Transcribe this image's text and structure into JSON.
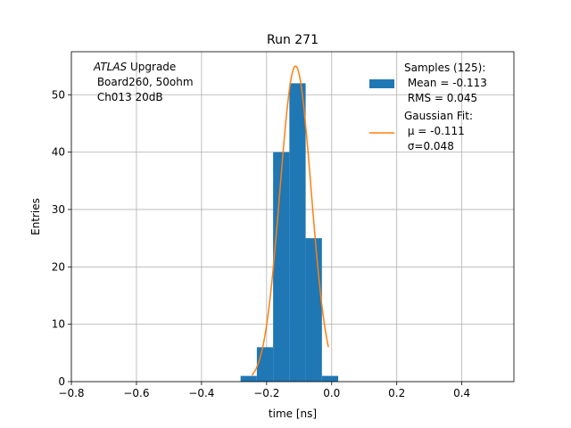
{
  "chart_data": {
    "type": "bar",
    "title": "Run 271",
    "xlabel": "time [ns]",
    "ylabel": "Entries",
    "xlim": [
      -0.8,
      0.56
    ],
    "ylim": [
      0,
      57.5
    ],
    "xticks": [
      -0.8,
      -0.6,
      -0.4,
      -0.2,
      0.0,
      0.2,
      0.4
    ],
    "xtick_labels": [
      "−0.8",
      "−0.6",
      "−0.4",
      "−0.2",
      "0.0",
      "0.2",
      "0.4"
    ],
    "yticks": [
      0,
      10,
      20,
      30,
      40,
      50
    ],
    "ytick_labels": [
      "0",
      "10",
      "20",
      "30",
      "40",
      "50"
    ],
    "grid": true,
    "legend_position": "top-right",
    "annotation": {
      "italic": "ATLAS",
      "line1_rest": " Upgrade",
      "line2": " Board260, 50ohm",
      "line3": " Ch013 20dB"
    },
    "histogram": {
      "name_lines": [
        "Samples (125):",
        " Mean = -0.113",
        " RMS = 0.045"
      ],
      "color": "#1f77b4",
      "bin_edges": [
        -0.28,
        -0.23,
        -0.18,
        -0.13,
        -0.08,
        -0.03,
        0.02
      ],
      "counts": [
        1,
        6,
        40,
        52,
        25,
        1
      ]
    },
    "fit": {
      "name_lines": [
        "Gaussian Fit:",
        " μ = -0.111",
        " σ=0.048"
      ],
      "color": "#ff7f0e",
      "mu": -0.111,
      "sigma": 0.048,
      "amplitude": 55,
      "x_range": [
        -0.245,
        -0.01
      ]
    }
  }
}
